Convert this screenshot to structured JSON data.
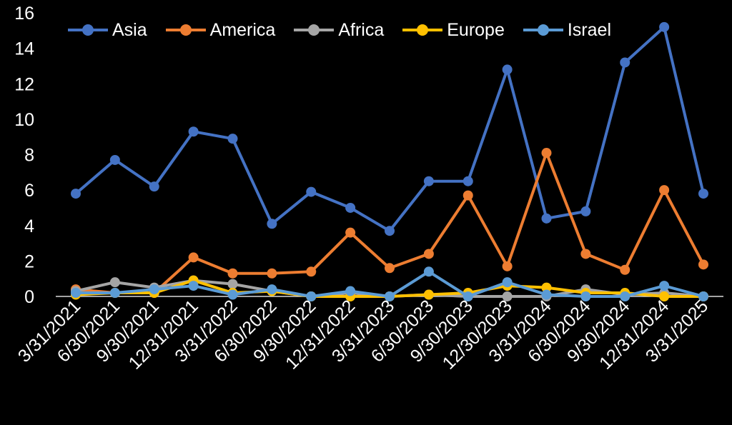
{
  "chart_data": {
    "type": "line",
    "title": "",
    "xlabel": "",
    "ylabel": "",
    "ylim": [
      0,
      16
    ],
    "yticks": [
      0,
      2,
      4,
      6,
      8,
      10,
      12,
      14,
      16
    ],
    "grid": false,
    "legend_position": "top",
    "background": "#000000",
    "categories": [
      "3/31/2021",
      "6/30/2021",
      "9/30/2021",
      "12/31/2021",
      "3/31/2022",
      "6/30/2022",
      "9/30/2022",
      "12/31/2022",
      "3/31/2023",
      "6/30/2023",
      "9/30/2023",
      "12/30/2023",
      "3/31/2024",
      "6/30/2024",
      "9/30/2024",
      "12/31/2024",
      "3/31/2025"
    ],
    "series": [
      {
        "name": "Asia",
        "color": "#4472C4",
        "values": [
          5.8,
          7.7,
          6.2,
          9.3,
          8.9,
          4.1,
          5.9,
          5.0,
          3.7,
          6.5,
          6.5,
          12.8,
          4.4,
          4.8,
          13.2,
          15.2,
          5.8
        ]
      },
      {
        "name": "America",
        "color": "#ED7D31",
        "values": [
          0.4,
          0.2,
          0.2,
          2.2,
          1.3,
          1.3,
          1.4,
          3.6,
          1.6,
          2.4,
          5.7,
          1.7,
          8.1,
          2.4,
          1.5,
          6.0,
          1.8
        ]
      },
      {
        "name": "Africa",
        "color": "#A5A5A5",
        "values": [
          0.3,
          0.8,
          0.5,
          0.9,
          0.7,
          0.3,
          0.0,
          0.2,
          0.0,
          0.1,
          0.0,
          0.0,
          0.0,
          0.4,
          0.1,
          0.2,
          0.0
        ]
      },
      {
        "name": "Europe",
        "color": "#FFC000",
        "values": [
          0.1,
          0.2,
          0.2,
          0.9,
          0.2,
          0.3,
          0.0,
          0.0,
          0.0,
          0.1,
          0.2,
          0.6,
          0.5,
          0.2,
          0.2,
          0.0,
          0.0
        ]
      },
      {
        "name": "Israel",
        "color": "#5B9BD5",
        "values": [
          0.2,
          0.2,
          0.4,
          0.6,
          0.1,
          0.4,
          0.0,
          0.3,
          0.0,
          1.4,
          0.0,
          0.8,
          0.1,
          0.0,
          0.0,
          0.6,
          0.0
        ]
      }
    ]
  }
}
